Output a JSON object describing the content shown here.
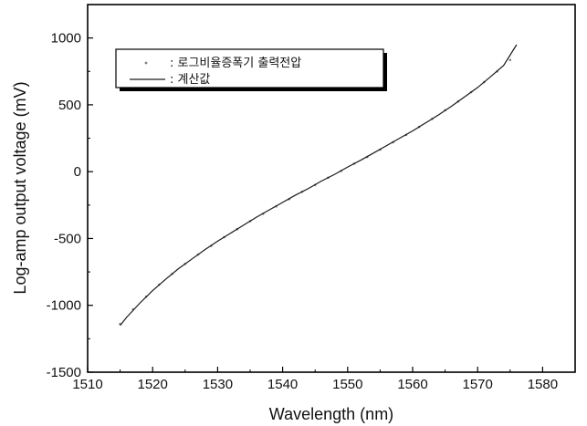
{
  "chart_data": {
    "type": "line",
    "title": "",
    "xlabel": "Wavelength (nm)",
    "ylabel": "Log-amp output voltage (mV)",
    "xlim": [
      1510,
      1585
    ],
    "ylim": [
      -1500,
      1250
    ],
    "x_ticks": [
      1510,
      1520,
      1530,
      1540,
      1550,
      1560,
      1570,
      1580
    ],
    "y_ticks": [
      -1500,
      -1000,
      -500,
      0,
      500,
      1000
    ],
    "x_tick_labels": [
      "1510",
      "1520",
      "1530",
      "1540",
      "1550",
      "1560",
      "1570",
      "1580"
    ],
    "y_tick_labels": [
      "-1500",
      "-1000",
      "-500",
      "0",
      "500",
      "1000"
    ],
    "grid": false,
    "legend_position": "top-left",
    "series": [
      {
        "name": ": 로그비율증폭기 출력전압",
        "kind": "scatter",
        "x": [
          1515,
          1517,
          1519,
          1521,
          1523,
          1525,
          1527,
          1529,
          1531,
          1533,
          1535,
          1537,
          1539,
          1541,
          1543,
          1545,
          1547,
          1549,
          1551,
          1553,
          1555,
          1557,
          1559,
          1561,
          1563,
          1565,
          1567,
          1569,
          1571,
          1573,
          1575
        ],
        "y": [
          -1140,
          -1030,
          -935,
          -845,
          -765,
          -690,
          -620,
          -555,
          -490,
          -430,
          -370,
          -315,
          -260,
          -205,
          -150,
          -100,
          -45,
          5,
          60,
          110,
          165,
          220,
          275,
          335,
          395,
          460,
          525,
          595,
          670,
          750,
          835
        ]
      },
      {
        "name": ": 계산값",
        "kind": "line",
        "x": [
          1515,
          1516,
          1518,
          1520,
          1522,
          1524,
          1526,
          1528,
          1530,
          1532,
          1534,
          1536,
          1538,
          1540,
          1542,
          1544,
          1546,
          1548,
          1550,
          1552,
          1554,
          1556,
          1558,
          1560,
          1562,
          1564,
          1566,
          1568,
          1570,
          1572,
          1574,
          1576
        ],
        "y": [
          -1150,
          -1090,
          -985,
          -890,
          -805,
          -725,
          -655,
          -585,
          -520,
          -460,
          -400,
          -340,
          -285,
          -230,
          -175,
          -125,
          -70,
          -20,
          35,
          85,
          140,
          195,
          250,
          305,
          365,
          425,
          490,
          560,
          630,
          710,
          795,
          950
        ]
      }
    ],
    "colors": {
      "line": "#1a1a1a",
      "markers": "#808080",
      "axis": "#000000"
    }
  }
}
